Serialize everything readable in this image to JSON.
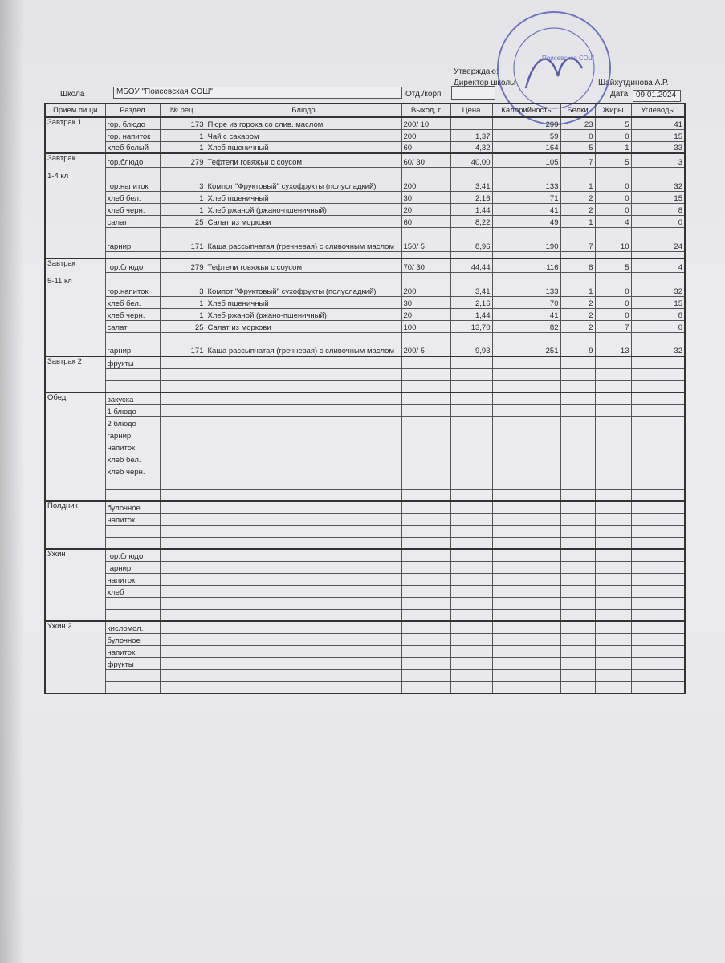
{
  "header": {
    "approve": "Утверждаю:",
    "director": "Директор школы",
    "director_name": "Шайхутдинова А.Р.",
    "school_label": "Школа",
    "school": "МБОУ \"Поисевская СОШ\"",
    "dept_label": "Отд./корп",
    "dept": "",
    "date_label": "Дата",
    "date": "09.01.2024"
  },
  "stamp": {
    "text": "Поисевская СОШ",
    "color": "#4a4fb0"
  },
  "columns": [
    "Прием пищи",
    "Раздел",
    "№ рец.",
    "Блюдо",
    "Выход, г",
    "Цена",
    "Калорийность",
    "Белки",
    "Жиры",
    "Углеводы"
  ],
  "sections": [
    {
      "meal": "Завтрак 1",
      "rows": [
        [
          "гор. блюдо",
          "173",
          "Пюре из гороха со слив. маслом",
          "200/ 10",
          "",
          "299",
          "23",
          "5",
          "41"
        ],
        [
          "гор. напиток",
          "1",
          "Чай с сахаром",
          "200",
          "1,37",
          "59",
          "0",
          "0",
          "15"
        ],
        [
          "хлеб белый",
          "1",
          "Хлеб пшеничный",
          "60",
          "4,32",
          "164",
          "5",
          "1",
          "33"
        ]
      ]
    },
    {
      "meal": "Завтрак\n\n1-4 кл",
      "rows": [
        [
          "гор.блюдо",
          "279",
          "Тефтели говяжьи с соусом",
          "60/ 30",
          "40,00",
          "105",
          "7",
          "5",
          "3"
        ],
        [
          "гор.напиток",
          "3",
          "Компот \"Фруктовый\" сухофрукты (полусладкий)",
          "200",
          "3,41",
          "133",
          "1",
          "0",
          "32"
        ],
        [
          "хлеб бел.",
          "1",
          "Хлеб пшеничный",
          "30",
          "2,16",
          "71",
          "2",
          "0",
          "15"
        ],
        [
          "хлеб черн.",
          "1",
          "Хлеб ржаной (ржано-пшеничный)",
          "20",
          "1,44",
          "41",
          "2",
          "0",
          "8"
        ],
        [
          "салат",
          "25",
          "Салат из моркови",
          "60",
          "8,22",
          "49",
          "1",
          "4",
          "0"
        ],
        [
          "гарнир",
          "171",
          "Каша рассыпчатая (гречневая) с сливочным маслом",
          "150/ 5",
          "8,96",
          "190",
          "7",
          "10",
          "24"
        ],
        [
          "",
          "",
          "",
          "",
          "",
          "",
          "",
          "",
          ""
        ]
      ]
    },
    {
      "meal": "Завтрак\n\n5-11 кл",
      "rows": [
        [
          "гор.блюдо",
          "279",
          "Тефтели говяжьи с соусом",
          "70/ 30",
          "44,44",
          "116",
          "8",
          "5",
          "4"
        ],
        [
          "гор.напиток",
          "3",
          "Компот \"Фруктовый\" сухофрукты (полусладкий)",
          "200",
          "3,41",
          "133",
          "1",
          "0",
          "32"
        ],
        [
          "хлеб бел.",
          "1",
          "Хлеб пшеничный",
          "30",
          "2,16",
          "70",
          "2",
          "0",
          "15"
        ],
        [
          "хлеб черн.",
          "1",
          "Хлеб ржаной (ржано-пшеничный)",
          "20",
          "1,44",
          "41",
          "2",
          "0",
          "8"
        ],
        [
          "салат",
          "25",
          "Салат из моркови",
          "100",
          "13,70",
          "82",
          "2",
          "7",
          "0"
        ],
        [
          "гарнир",
          "171",
          "Каша рассыпчатая (гречневая) с сливочным маслом",
          "200/ 5",
          "9,93",
          "251",
          "9",
          "13",
          "32"
        ]
      ]
    },
    {
      "meal": "Завтрак 2",
      "rows": [
        [
          "фрукты"
        ],
        [
          ""
        ],
        [
          ""
        ]
      ]
    },
    {
      "meal": "Обед",
      "rows": [
        [
          "закуска"
        ],
        [
          "1 блюдо"
        ],
        [
          "2 блюдо"
        ],
        [
          "гарнир"
        ],
        [
          "напиток"
        ],
        [
          "хлеб бел."
        ],
        [
          "хлеб черн."
        ],
        [
          ""
        ],
        [
          ""
        ]
      ]
    },
    {
      "meal": "Полдник",
      "rows": [
        [
          "булочное"
        ],
        [
          "напиток"
        ],
        [
          ""
        ],
        [
          ""
        ]
      ]
    },
    {
      "meal": "Ужин",
      "rows": [
        [
          "гор.блюдо"
        ],
        [
          "гарнир"
        ],
        [
          "напиток"
        ],
        [
          "хлеб"
        ],
        [
          ""
        ],
        [
          ""
        ]
      ]
    },
    {
      "meal": "Ужин 2",
      "rows": [
        [
          "кисломол."
        ],
        [
          "булочное"
        ],
        [
          "напиток"
        ],
        [
          "фрукты"
        ],
        [
          ""
        ],
        [
          ""
        ]
      ]
    }
  ]
}
